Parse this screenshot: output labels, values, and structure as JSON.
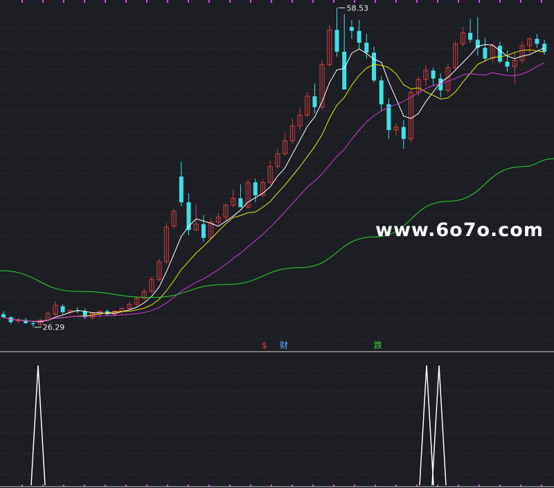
{
  "colors": {
    "background": "#1c1e24",
    "grid": "#33363f",
    "up": "#d23c3c",
    "down": "#3fe0e8",
    "ma_short": "#ffffff",
    "ma_mid": "#e6e600",
    "ma_long": "#d636d6",
    "ma_longest": "#2bd12b",
    "signal": "#ffffff",
    "top_ticks": "#e040e0"
  },
  "watermark": "www.6o7o.com",
  "markers": [
    {
      "text": "$",
      "color": "#e03a3a"
    },
    {
      "text": "财",
      "color": "#5fb0ff"
    },
    {
      "text": "跌",
      "color": "#3ed13e"
    }
  ],
  "chart_data": {
    "type": "candlestick",
    "y_range": [
      25.5,
      58.9
    ],
    "annotations": [
      {
        "label": "58.53",
        "candle_index": 45,
        "price": 58.53
      },
      {
        "label": "26.29",
        "candle_index": 4,
        "price": 26.29
      }
    ],
    "candles": [
      [
        27.6,
        27.9,
        27.2,
        27.3
      ],
      [
        27.3,
        27.4,
        26.6,
        26.8
      ],
      [
        26.9,
        27.2,
        26.7,
        27.0
      ],
      [
        27.0,
        27.2,
        26.6,
        26.7
      ],
      [
        26.7,
        26.9,
        26.29,
        26.6
      ],
      [
        26.6,
        27.1,
        26.4,
        27.0
      ],
      [
        27.0,
        27.9,
        26.8,
        27.7
      ],
      [
        27.6,
        28.9,
        27.4,
        28.5
      ],
      [
        28.4,
        28.6,
        27.6,
        27.8
      ],
      [
        27.8,
        28.1,
        27.5,
        28.0
      ],
      [
        28.0,
        28.3,
        27.7,
        27.9
      ],
      [
        27.9,
        28.2,
        27.1,
        27.3
      ],
      [
        27.3,
        27.8,
        27.0,
        27.7
      ],
      [
        27.6,
        28.0,
        27.2,
        27.9
      ],
      [
        27.9,
        28.1,
        27.5,
        27.6
      ],
      [
        27.6,
        28.0,
        27.3,
        27.9
      ],
      [
        27.9,
        28.3,
        27.6,
        28.2
      ],
      [
        28.2,
        28.9,
        28.0,
        28.6
      ],
      [
        28.6,
        29.4,
        28.4,
        29.2
      ],
      [
        29.2,
        30.2,
        29.0,
        29.9
      ],
      [
        29.9,
        31.4,
        29.7,
        31.1
      ],
      [
        31.1,
        33.2,
        30.9,
        32.9
      ],
      [
        32.9,
        36.8,
        32.7,
        36.4
      ],
      [
        36.5,
        38.2,
        36.2,
        38.0
      ],
      [
        41.5,
        43.0,
        38.5,
        38.9
      ],
      [
        38.9,
        39.8,
        35.6,
        36.1
      ],
      [
        36.1,
        38.7,
        36.0,
        36.7
      ],
      [
        36.7,
        37.6,
        34.9,
        35.3
      ],
      [
        35.3,
        37.3,
        35.1,
        36.9
      ],
      [
        36.9,
        37.8,
        36.6,
        37.4
      ],
      [
        37.4,
        38.8,
        37.0,
        38.6
      ],
      [
        38.6,
        40.2,
        38.4,
        39.3
      ],
      [
        39.3,
        40.7,
        38.4,
        38.4
      ],
      [
        38.4,
        41.2,
        38.2,
        40.9
      ],
      [
        40.9,
        41.3,
        38.9,
        39.6
      ],
      [
        39.6,
        41.2,
        39.4,
        40.9
      ],
      [
        40.9,
        43.1,
        40.7,
        42.5
      ],
      [
        42.5,
        44.3,
        42.3,
        43.8
      ],
      [
        43.8,
        45.9,
        43.6,
        45.1
      ],
      [
        45.1,
        47.4,
        44.8,
        46.6
      ],
      [
        46.6,
        48.5,
        46.2,
        47.7
      ],
      [
        47.7,
        50.0,
        47.5,
        49.6
      ],
      [
        49.6,
        50.9,
        47.9,
        48.5
      ],
      [
        48.5,
        53.2,
        48.3,
        52.8
      ],
      [
        52.8,
        56.8,
        52.6,
        56.3
      ],
      [
        56.3,
        58.53,
        53.6,
        54.1
      ],
      [
        54.1,
        57.9,
        50.3,
        50.3
      ],
      [
        56.6,
        57.3,
        55.4,
        56.2
      ],
      [
        56.2,
        57.3,
        54.4,
        55.0
      ],
      [
        55.0,
        55.9,
        53.4,
        54.0
      ],
      [
        54.0,
        54.6,
        51.0,
        51.2
      ],
      [
        51.2,
        51.6,
        48.2,
        48.8
      ],
      [
        48.8,
        49.4,
        45.3,
        46.2
      ],
      [
        46.2,
        46.9,
        45.6,
        46.5
      ],
      [
        46.5,
        47.2,
        44.3,
        45.3
      ],
      [
        45.3,
        50.3,
        45.0,
        50.0
      ],
      [
        50.0,
        51.6,
        49.6,
        51.3
      ],
      [
        51.3,
        52.7,
        50.6,
        52.2
      ],
      [
        52.2,
        52.5,
        50.6,
        51.4
      ],
      [
        51.4,
        51.9,
        49.5,
        50.2
      ],
      [
        50.2,
        52.9,
        49.9,
        52.5
      ],
      [
        52.5,
        55.2,
        52.2,
        54.9
      ],
      [
        54.9,
        56.6,
        54.6,
        56.0
      ],
      [
        56.0,
        57.4,
        55.0,
        55.3
      ],
      [
        55.3,
        57.6,
        53.7,
        54.5
      ],
      [
        54.5,
        55.5,
        53.2,
        53.4
      ],
      [
        53.4,
        54.9,
        53.0,
        54.7
      ],
      [
        54.7,
        55.1,
        52.9,
        53.1
      ],
      [
        53.1,
        54.2,
        52.1,
        52.6
      ],
      [
        52.6,
        54.1,
        50.8,
        53.2
      ],
      [
        53.2,
        55.1,
        52.9,
        54.7
      ],
      [
        54.7,
        55.6,
        53.9,
        55.4
      ],
      [
        55.4,
        55.9,
        54.5,
        54.9
      ],
      [
        54.9,
        55.3,
        53.8,
        54.1
      ]
    ],
    "ma_series": [
      {
        "period": 5,
        "color": "#ffffff"
      },
      {
        "period": 10,
        "color": "#e6e600"
      },
      {
        "period": 20,
        "color": "#d636d6"
      }
    ],
    "long_ma_points": [
      [
        0,
        32.0
      ],
      [
        10,
        29.9
      ],
      [
        20,
        29.3
      ],
      [
        30,
        30.6
      ],
      [
        40,
        32.3
      ],
      [
        50,
        35.4
      ],
      [
        60,
        39.0
      ],
      [
        70,
        42.5
      ],
      [
        73,
        43.3
      ]
    ],
    "signals": [
      6,
      68,
      70
    ]
  }
}
